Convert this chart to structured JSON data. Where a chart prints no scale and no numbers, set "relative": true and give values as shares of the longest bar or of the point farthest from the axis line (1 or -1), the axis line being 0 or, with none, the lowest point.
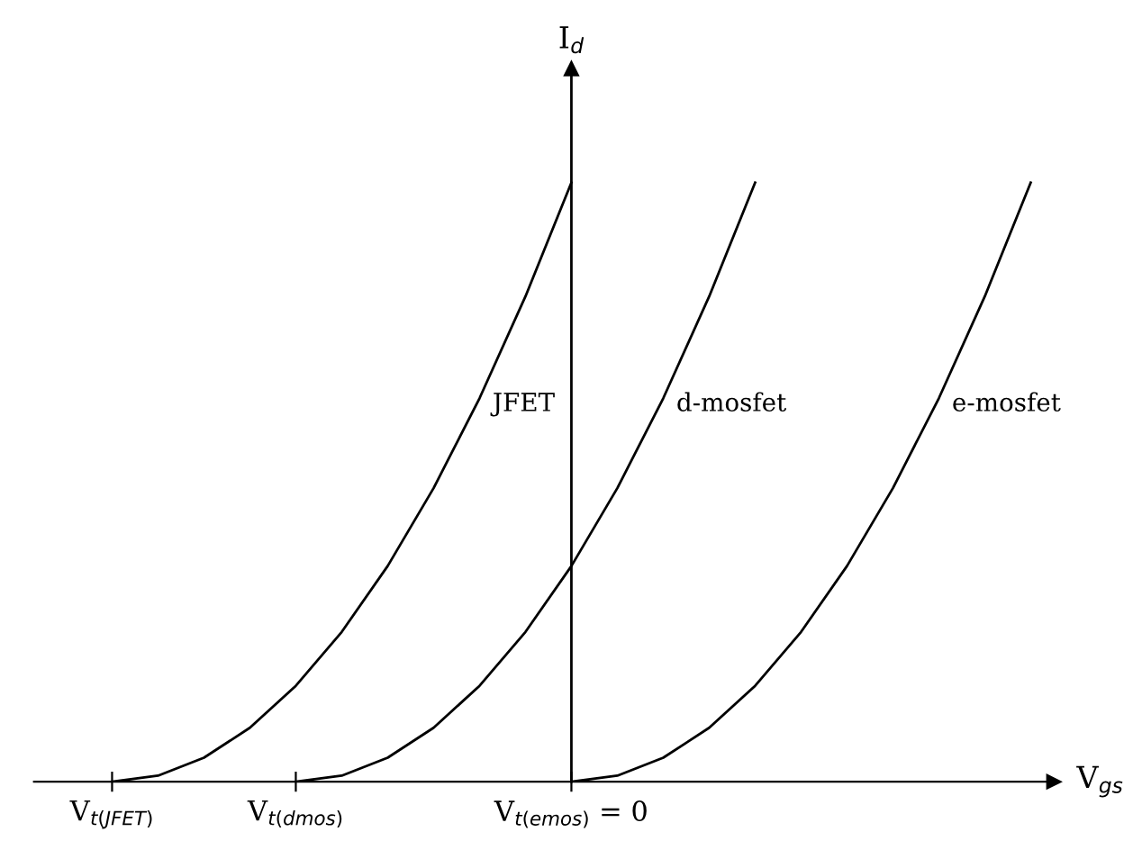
{
  "chart_data": {
    "type": "line",
    "relative": true,
    "xlabel": "V$_{gs}$",
    "ylabel": "I$_{d}$",
    "categories": [
      "V$_{t(JFET)}$",
      null,
      null,
      null,
      "V$_{t(dmos)}$",
      null,
      null,
      null,
      null,
      null,
      "V$_{t(emos)}$ = 0",
      null,
      null,
      null,
      null,
      null,
      null,
      null,
      null,
      null,
      null
    ],
    "marker": "none",
    "line_style": "solid",
    "grid": false,
    "legend": false,
    "ref_lines": [
      {
        "axis": "x",
        "value": "V$_{t(emos)}$ = 0",
        "color": "#000000"
      }
    ],
    "series": [
      {
        "name": "JFET",
        "color": "#000000",
        "values": [
          0,
          0.01,
          0.04,
          0.09,
          0.16,
          0.25,
          0.36,
          0.49,
          0.64,
          0.81,
          1,
          null,
          null,
          null,
          null,
          null,
          null,
          null,
          null,
          null,
          null
        ]
      },
      {
        "name": "d-mosfet",
        "color": "#000000",
        "values": [
          null,
          null,
          null,
          null,
          0,
          0.01,
          0.04,
          0.09,
          0.16,
          0.25,
          0.36,
          0.49,
          0.64,
          0.81,
          1,
          null,
          null,
          null,
          null,
          null,
          null
        ]
      },
      {
        "name": "e-mosfet",
        "color": "#000000",
        "values": [
          null,
          null,
          null,
          null,
          null,
          null,
          null,
          null,
          null,
          null,
          0,
          0.01,
          0.04,
          0.09,
          0.16,
          0.25,
          0.36,
          0.49,
          0.64,
          0.81,
          1
        ]
      }
    ]
  }
}
